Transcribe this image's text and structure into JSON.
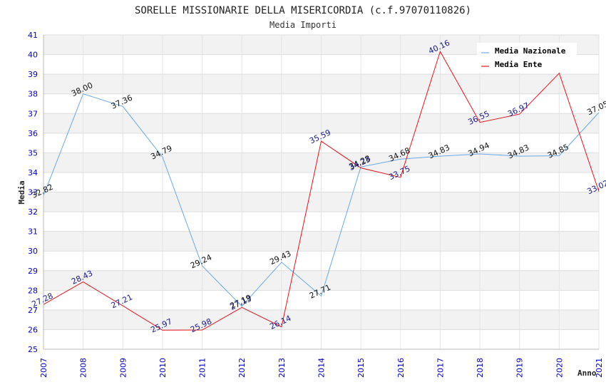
{
  "chart_data": {
    "type": "line",
    "title": "SORELLE MISSIONARIE DELLA MISERICORDIA (c.f.97070110826)",
    "subtitle": "Media Importi",
    "xlabel": "Anno",
    "ylabel": "Media",
    "x": [
      "2007",
      "2008",
      "2009",
      "2010",
      "2011",
      "2012",
      "2013",
      "2014",
      "2015",
      "2016",
      "2017",
      "2018",
      "2019",
      "2020",
      "2021"
    ],
    "ylim": [
      25,
      41
    ],
    "yticks": [
      25,
      26,
      27,
      28,
      29,
      30,
      31,
      32,
      33,
      34,
      35,
      36,
      37,
      38,
      39,
      40,
      41
    ],
    "grid": true,
    "legend_position": "top-right",
    "series": [
      {
        "name": "Media Nazionale",
        "color": "#6aa9e6",
        "values": [
          32.82,
          38.0,
          37.36,
          34.79,
          29.24,
          27.19,
          29.43,
          27.71,
          34.28,
          34.68,
          34.83,
          34.94,
          34.83,
          34.85,
          37.05
        ],
        "labels": [
          "32.82",
          "38.00",
          "37.36",
          "34.79",
          "29.24",
          "27.19",
          "29.43",
          "27.71",
          "34.28",
          "34.68",
          "34.83",
          "34.94",
          "34.83",
          "34.85",
          "37.05"
        ]
      },
      {
        "name": "Media Ente",
        "color": "#e8141e",
        "values": [
          27.28,
          28.43,
          27.21,
          25.97,
          25.98,
          27.13,
          26.14,
          35.59,
          34.23,
          33.75,
          40.16,
          36.55,
          36.97,
          39.05,
          33.02
        ],
        "labels": [
          "27.28",
          "28.43",
          "27.21",
          "25.97",
          "25.98",
          "27.13",
          "26.14",
          "35.59",
          "34.23",
          "33.75",
          "40.16",
          "36.55",
          "36.97",
          "",
          "33.02"
        ]
      }
    ]
  }
}
